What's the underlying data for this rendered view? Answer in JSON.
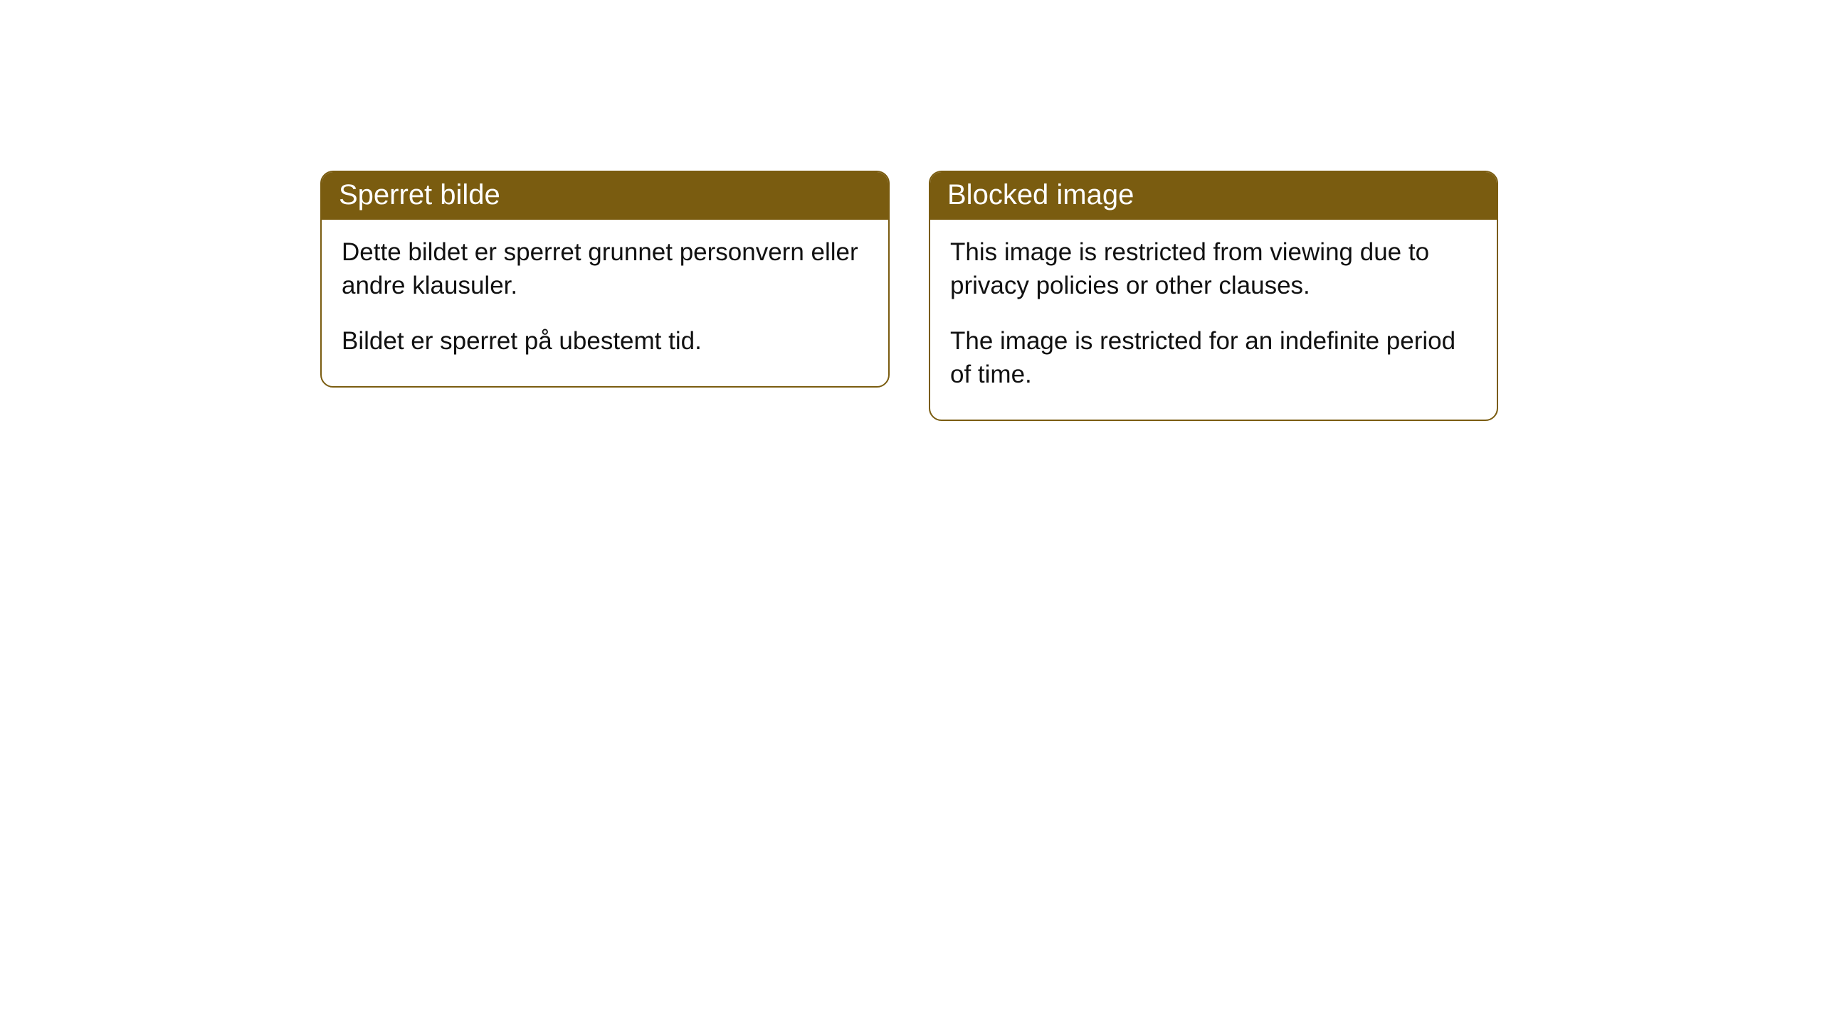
{
  "cards": [
    {
      "title": "Sperret bilde",
      "paragraph1": "Dette bildet er sperret grunnet personvern eller andre klausuler.",
      "paragraph2": "Bildet er sperret på ubestemt tid."
    },
    {
      "title": "Blocked image",
      "paragraph1": "This image is restricted from viewing due to privacy policies or other clauses.",
      "paragraph2": "The image is restricted for an indefinite period of time."
    }
  ],
  "style": {
    "header_background": "#7a5c10",
    "header_text_color": "#ffffff",
    "border_color": "#7a5c10",
    "body_background": "#ffffff",
    "body_text_color": "#111111",
    "border_radius": 18,
    "header_fontsize": 40,
    "body_fontsize": 35
  }
}
